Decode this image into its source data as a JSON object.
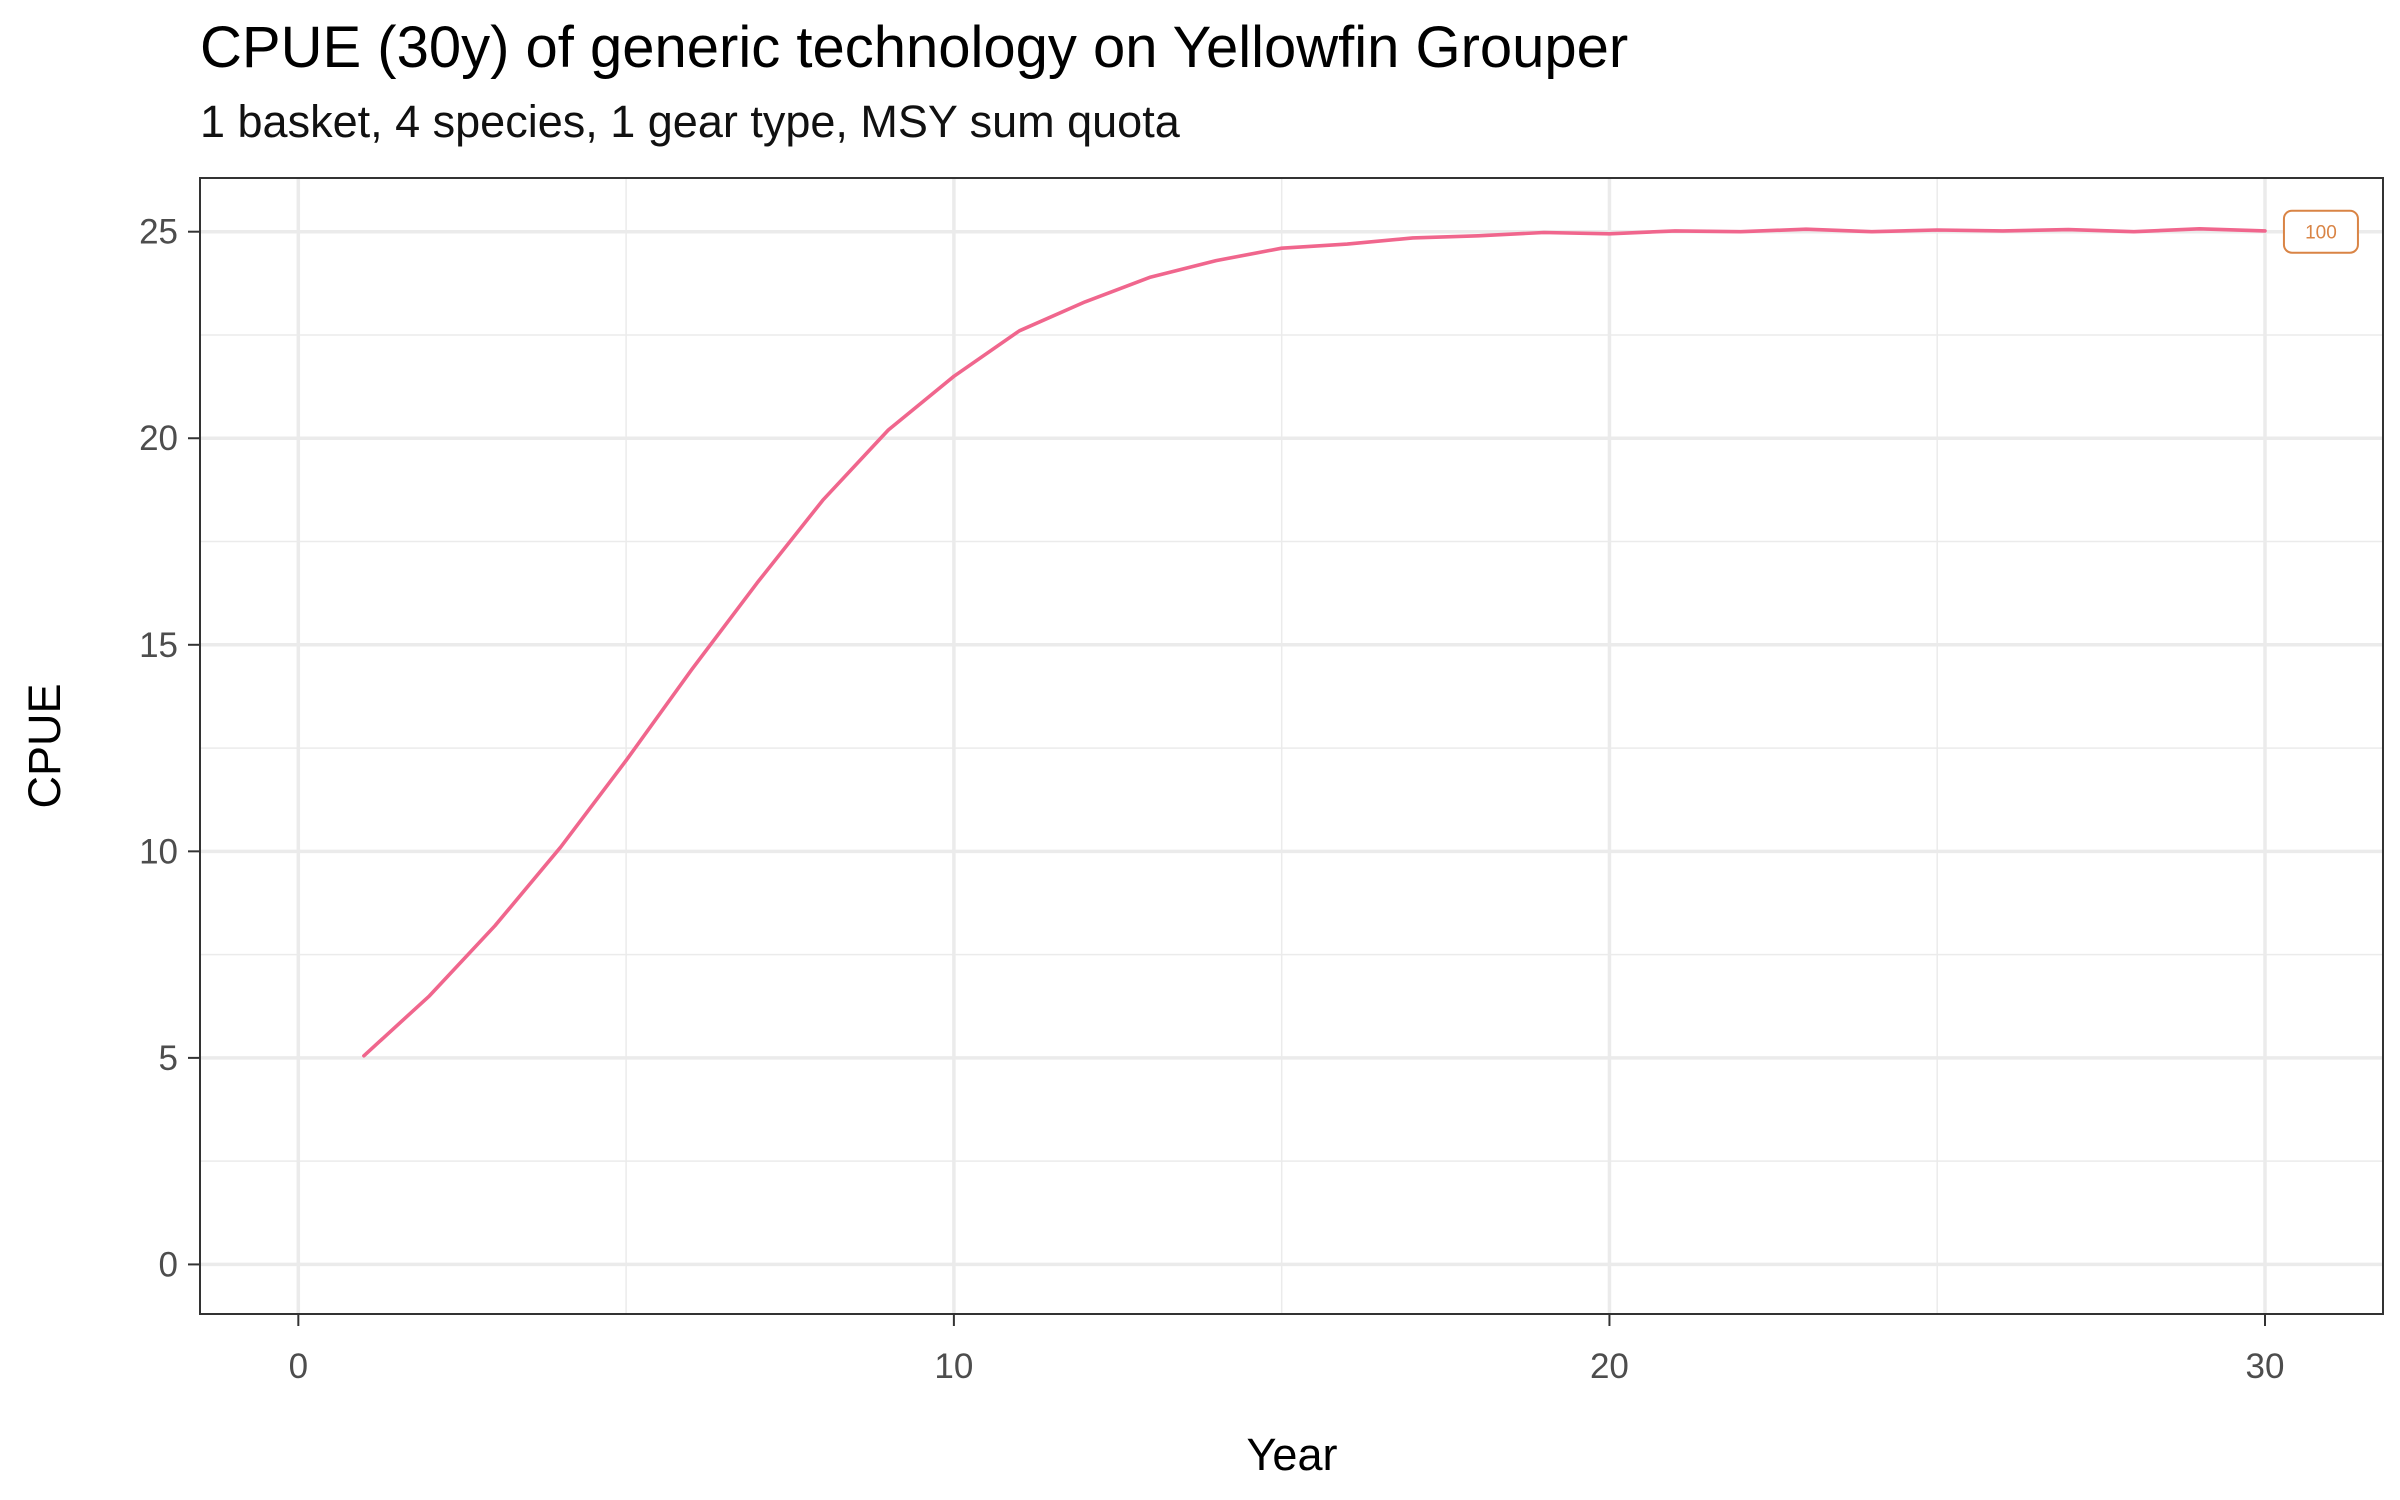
{
  "chart_data": {
    "type": "line",
    "title": "CPUE (30y) of generic technology on Yellowfin Grouper",
    "subtitle": "1 basket, 4 species, 1 gear type, MSY sum quota",
    "xlabel": "Year",
    "ylabel": "CPUE",
    "xlim": [
      -1.5,
      31.8
    ],
    "ylim": [
      -1.2,
      26.3
    ],
    "x_ticks": [
      0,
      10,
      20,
      30
    ],
    "x_minor_ticks": [
      5,
      15,
      25
    ],
    "y_ticks": [
      0,
      5,
      10,
      15,
      20,
      25
    ],
    "y_minor_ticks": [
      2.5,
      7.5,
      12.5,
      17.5,
      22.5
    ],
    "grid": true,
    "legend": "none",
    "colors": {
      "line": "#f0668d",
      "end_label": "#d98445",
      "grid": "#ebebeb",
      "panel_border": "#333333",
      "tick_label": "#4d4d4d"
    },
    "series": [
      {
        "x": [
          1,
          2,
          3,
          4,
          5,
          6,
          7,
          8,
          9,
          10,
          11,
          12,
          13,
          14,
          15,
          16,
          17,
          18,
          19,
          20,
          21,
          22,
          23,
          24,
          25,
          26,
          27,
          28,
          29,
          30
        ],
        "values": [
          5.05,
          6.5,
          8.2,
          10.1,
          12.2,
          14.4,
          16.5,
          18.5,
          20.2,
          21.5,
          22.6,
          23.3,
          23.9,
          24.3,
          24.6,
          24.7,
          24.85,
          24.9,
          24.98,
          24.95,
          25.02,
          25.0,
          25.06,
          25.0,
          25.04,
          25.02,
          25.05,
          25.0,
          25.07,
          25.02
        ]
      }
    ],
    "end_label": {
      "text": "100",
      "x": 30.35,
      "y": 25.0
    }
  }
}
